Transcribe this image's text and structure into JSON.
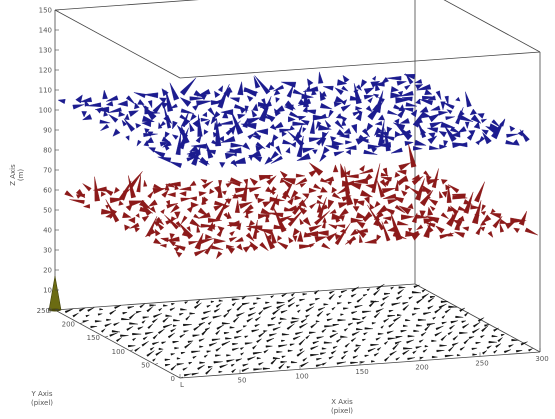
{
  "chart_data": {
    "type": "3d-quiver",
    "title": "",
    "axes": {
      "x": {
        "label": "X Axis",
        "unit": "(pixel)",
        "range": [
          0,
          300
        ],
        "tick_values": [
          0,
          50,
          100,
          150,
          200,
          250,
          300
        ],
        "tick_labels": [
          "L",
          "50",
          "100",
          "150",
          "200",
          "250",
          "300"
        ]
      },
      "y": {
        "label": "Y Axis",
        "unit": "(pixel)",
        "range": [
          0,
          250
        ],
        "tick_values": [
          0,
          50,
          100,
          150,
          200,
          250
        ],
        "tick_labels": [
          "0",
          "50",
          "100",
          "150",
          "200",
          "250"
        ]
      },
      "z": {
        "label": "Z Axis",
        "unit": "(m)",
        "range": [
          0,
          150
        ],
        "tick_values": [
          0,
          10,
          20,
          30,
          40,
          50,
          60,
          70,
          80,
          90,
          100,
          110,
          120,
          130,
          140,
          150
        ],
        "tick_labels": [
          "0",
          "10",
          "20",
          "30",
          "40",
          "50",
          "60",
          "70",
          "80",
          "90",
          "100",
          "110",
          "120",
          "130",
          "140",
          "150"
        ]
      }
    },
    "grid": false,
    "legend": null,
    "series": [
      {
        "style": "vector arrows",
        "plane_z": 105,
        "color": "#1c1c8f",
        "grid_nx": 28,
        "grid_ny": 14
      },
      {
        "style": "vector arrows",
        "plane_z": 60,
        "color": "#8c1a1a",
        "grid_nx": 28,
        "grid_ny": 14
      },
      {
        "style": "vector arrows",
        "plane_z": 0,
        "color": "#111111",
        "grid_nx": 30,
        "grid_ny": 14
      }
    ],
    "marker": {
      "shape": "cone",
      "color": "#6b6b12",
      "x": 0,
      "y": 250,
      "z_base": 0,
      "z_top": 17
    }
  }
}
